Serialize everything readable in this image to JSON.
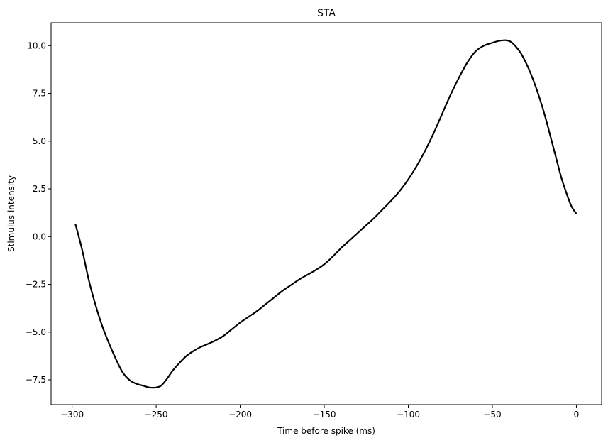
{
  "chart_data": {
    "type": "line",
    "title": "STA",
    "xlabel": "Time before spike (ms)",
    "ylabel": "Stimulus intensity",
    "xlim": [
      -312.5,
      15
    ],
    "ylim": [
      -8.8,
      11.2
    ],
    "xticks": [
      -300,
      -250,
      -200,
      -150,
      -100,
      -50,
      0
    ],
    "xtick_labels": [
      "−300",
      "−250",
      "−200",
      "−150",
      "−100",
      "−50",
      "0"
    ],
    "yticks": [
      -7.5,
      -5.0,
      -2.5,
      0.0,
      2.5,
      5.0,
      7.5,
      10.0
    ],
    "ytick_labels": [
      "−7.5",
      "−5.0",
      "−2.5",
      "0.0",
      "2.5",
      "5.0",
      "7.5",
      "10.0"
    ],
    "grid": false,
    "series": [
      {
        "color": "#000000",
        "x": [
          -298,
          -294,
          -290,
          -286,
          -282,
          -278,
          -274,
          -270,
          -266,
          -262,
          -258,
          -254,
          -250,
          -247,
          -244,
          -240,
          -236,
          -232,
          -228,
          -224,
          -220,
          -215,
          -210,
          -205,
          -200,
          -195,
          -190,
          -185,
          -180,
          -175,
          -170,
          -165,
          -160,
          -155,
          -150,
          -145,
          -140,
          -135,
          -130,
          -125,
          -120,
          -115,
          -110,
          -105,
          -100,
          -95,
          -90,
          -85,
          -80,
          -75,
          -70,
          -65,
          -60,
          -55,
          -50,
          -46,
          -42,
          -39,
          -36,
          -33,
          -30,
          -27,
          -24,
          -21,
          -18,
          -15,
          -12,
          -9,
          -6,
          -3,
          0
        ],
        "y": [
          0.65,
          -0.7,
          -2.3,
          -3.6,
          -4.7,
          -5.6,
          -6.4,
          -7.1,
          -7.5,
          -7.7,
          -7.8,
          -7.9,
          -7.9,
          -7.8,
          -7.5,
          -7.0,
          -6.6,
          -6.25,
          -6.0,
          -5.8,
          -5.65,
          -5.45,
          -5.2,
          -4.85,
          -4.5,
          -4.2,
          -3.9,
          -3.55,
          -3.2,
          -2.85,
          -2.55,
          -2.25,
          -2.0,
          -1.75,
          -1.45,
          -1.05,
          -0.6,
          -0.2,
          0.2,
          0.6,
          1.0,
          1.45,
          1.9,
          2.4,
          3.0,
          3.7,
          4.5,
          5.4,
          6.4,
          7.4,
          8.3,
          9.1,
          9.7,
          10.0,
          10.15,
          10.25,
          10.28,
          10.2,
          9.95,
          9.6,
          9.1,
          8.5,
          7.8,
          7.0,
          6.1,
          5.1,
          4.1,
          3.1,
          2.3,
          1.6,
          1.2
        ]
      }
    ]
  }
}
